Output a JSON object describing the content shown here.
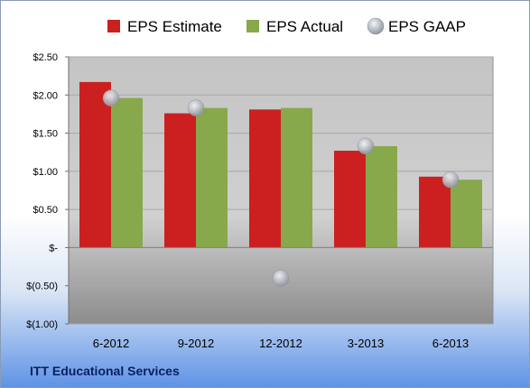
{
  "company": "ITT Educational Services",
  "chart_data": {
    "type": "bar",
    "categories": [
      "6-2012",
      "9-2012",
      "12-2012",
      "3-2013",
      "6-2013"
    ],
    "series": [
      {
        "name": "EPS Estimate",
        "kind": "bar",
        "color": "#cc2020",
        "values": [
          2.17,
          1.76,
          1.81,
          1.27,
          0.93
        ]
      },
      {
        "name": "EPS Actual",
        "kind": "bar",
        "color": "#88a84c",
        "values": [
          1.96,
          1.83,
          1.83,
          1.33,
          0.89
        ]
      },
      {
        "name": "EPS GAAP",
        "kind": "marker",
        "color": "#b8bec8",
        "values": [
          1.96,
          1.83,
          -0.4,
          1.33,
          0.89
        ]
      }
    ],
    "ylim": [
      -1.0,
      2.5
    ],
    "yticks": [
      2.5,
      2.0,
      1.5,
      1.0,
      0.5,
      0,
      -0.5,
      -1.0
    ],
    "ytick_labels": [
      "$2.50",
      "$2.00",
      "$1.50",
      "$1.00",
      "$0.50",
      "$-",
      "$(0.50)",
      "$(1.00)"
    ],
    "grid": true,
    "legend_position": "top"
  }
}
